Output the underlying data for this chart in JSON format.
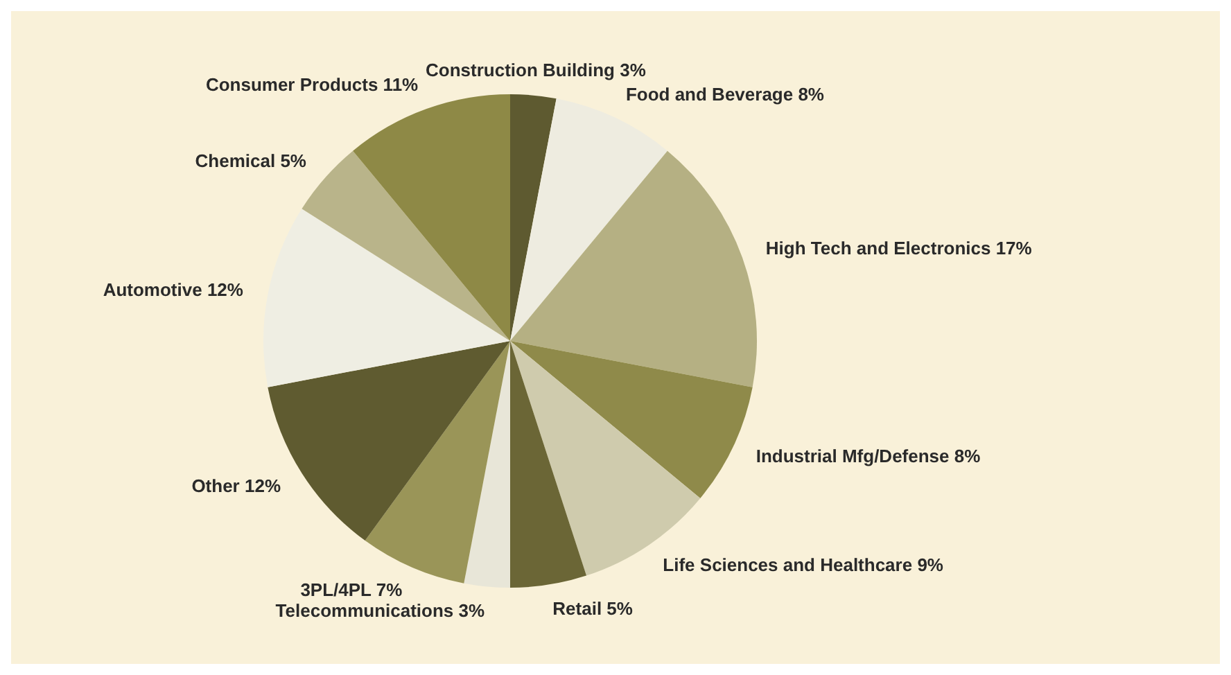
{
  "chart_data": {
    "type": "pie",
    "categories": [
      "Construction Building",
      "Food and Beverage",
      "High Tech and Electronics",
      "Industrial Mfg/Defense",
      "Life Sciences and Healthcare",
      "Retail",
      "Telecommunications",
      "3PL/4PL",
      "Other",
      "Automotive",
      "Chemical",
      "Consumer Products"
    ],
    "values": [
      3,
      8,
      17,
      8,
      9,
      5,
      3,
      7,
      12,
      12,
      5,
      11
    ],
    "value_labels": [
      "3%",
      "8%",
      "17%",
      "8%",
      "9%",
      "5%",
      "3%",
      "7%",
      "12%",
      "12%",
      "5%",
      "11%"
    ],
    "colors": [
      "#5e5a30",
      "#eeece0",
      "#b5b083",
      "#8f8a4a",
      "#cfcbad",
      "#6b6636",
      "#e8e6d8",
      "#9a9558",
      "#5f5b30",
      "#efeee3",
      "#b9b48a",
      "#8e8946"
    ]
  }
}
